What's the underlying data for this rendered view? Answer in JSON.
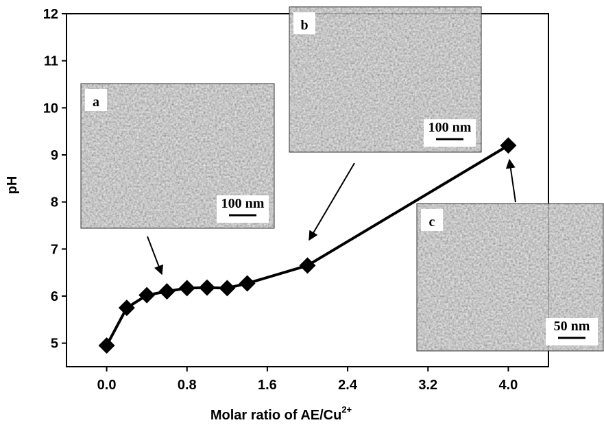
{
  "chart_data": {
    "type": "line",
    "x_label": "Molar ratio of AE/Cu",
    "x_label_sup": "2+",
    "y_label": "pH",
    "x": [
      0,
      0.2,
      0.4,
      0.6,
      0.8,
      1.0,
      1.2,
      1.4,
      2.0,
      4.0
    ],
    "series": [
      {
        "color": "#000000",
        "values": [
          4.95,
          5.75,
          6.02,
          6.1,
          6.17,
          6.18,
          6.17,
          6.27,
          6.65,
          9.2
        ]
      }
    ],
    "xlim": [
      -0.4,
      4.4
    ],
    "xticks": [
      {
        "value": 0,
        "label": "0.0"
      },
      0.8,
      1.6,
      2.4,
      3.2,
      {
        "value": 4,
        "label": "4.0"
      }
    ],
    "ylim": [
      4.5,
      12
    ],
    "yticks": [
      5,
      6,
      7,
      8,
      9,
      10,
      11,
      12
    ],
    "insets": [
      {
        "label": "a",
        "scale_bar": "100 nm"
      },
      {
        "label": "b",
        "scale_bar": "100 nm"
      },
      {
        "label": "c",
        "scale_bar": "50 nm"
      }
    ]
  }
}
